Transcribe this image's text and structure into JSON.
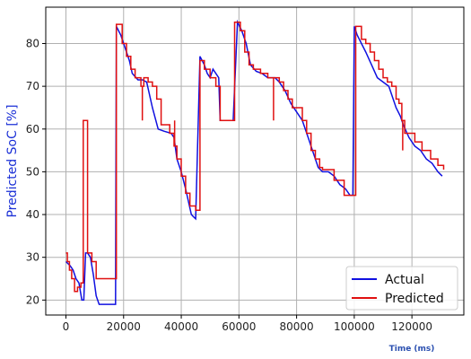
{
  "chart_data": {
    "type": "line",
    "xlabel": "Time (ms)",
    "ylabel": "Predicted SoC [%]",
    "xlim": [
      -7000,
      138000
    ],
    "ylim": [
      16.5,
      88.5
    ],
    "xticks": [
      0,
      20000,
      40000,
      60000,
      80000,
      100000,
      120000
    ],
    "yticks": [
      20,
      30,
      40,
      50,
      60,
      70,
      80
    ],
    "grid": true,
    "legend_position": "lower-right",
    "series": [
      {
        "name": "Actual",
        "color": "#1010e0",
        "step": false,
        "x": [
          0,
          1500,
          2500,
          3500,
          4500,
          5500,
          6200,
          6800,
          7500,
          8500,
          9500,
          10500,
          11500,
          12500,
          17200,
          17500,
          19000,
          21000,
          22000,
          23000,
          25000,
          26500,
          28000,
          30000,
          32000,
          34000,
          36500,
          37500,
          38500,
          40000,
          41500,
          43500,
          44200,
          45000,
          46500,
          48000,
          49000,
          50000,
          51000,
          53000,
          53500,
          58000,
          59500,
          61000,
          62500,
          64000,
          66000,
          68000,
          70000,
          72500,
          74000,
          76000,
          78000,
          80000,
          82000,
          84000,
          86000,
          87500,
          89000,
          91000,
          93000,
          95000,
          97000,
          98500,
          99500,
          100000,
          101000,
          102500,
          104000,
          106000,
          108000,
          110000,
          112000,
          114500,
          116000,
          117000,
          119000,
          121000,
          123000,
          125000,
          127000,
          129000,
          130500
        ],
        "y": [
          29,
          28,
          27,
          25,
          24,
          20,
          20,
          31,
          31,
          30,
          26,
          21,
          19,
          19,
          19,
          84,
          82,
          78,
          76,
          73,
          71.5,
          71.5,
          71,
          65,
          60,
          59.5,
          59,
          58,
          53,
          50,
          46,
          40,
          39.5,
          39,
          77,
          75,
          73,
          72,
          74,
          72,
          62,
          62,
          85,
          83,
          80,
          75,
          73.5,
          73,
          72,
          72,
          71,
          69,
          66,
          64,
          62,
          58,
          54,
          51,
          50,
          50,
          49,
          47,
          46,
          44.5,
          44.5,
          84,
          82,
          80,
          78,
          75,
          72,
          71,
          70,
          65,
          63,
          61,
          58,
          56,
          55,
          53,
          52,
          50,
          49
        ]
      },
      {
        "name": "Predicted",
        "color": "#e01010",
        "step": true,
        "x": [
          0,
          500,
          1200,
          2000,
          3000,
          4000,
          5200,
          6000,
          7500,
          9000,
          10500,
          17500,
          19500,
          21000,
          22500,
          24000,
          26000,
          27000,
          28500,
          30000,
          31500,
          33000,
          36000,
          37500,
          38500,
          40000,
          41500,
          43000,
          45000,
          46500,
          48000,
          50000,
          52000,
          53500,
          58500,
          60500,
          62000,
          63500,
          65000,
          67500,
          70000,
          72000,
          74000,
          75500,
          77000,
          78500,
          80000,
          82000,
          83500,
          85000,
          86500,
          88000,
          89000,
          93000,
          96500,
          100500,
          102500,
          104000,
          105500,
          107000,
          108500,
          110000,
          111500,
          113000,
          114500,
          115500,
          116500,
          117500,
          121000,
          123500,
          126500,
          129000,
          131000
        ],
        "y": [
          31,
          29,
          27,
          25,
          22,
          23,
          24,
          62,
          31,
          29,
          25,
          84.5,
          80,
          77,
          74,
          72,
          70,
          72,
          71,
          70,
          67,
          61,
          59,
          56,
          53,
          49,
          45,
          42,
          41,
          76,
          74,
          72,
          70,
          62,
          85,
          83,
          78,
          75,
          74,
          73,
          72,
          72,
          71,
          69,
          67,
          65,
          65,
          62,
          59,
          55,
          53,
          51,
          50.5,
          48,
          44.5,
          84,
          81,
          80,
          78,
          76,
          74,
          72,
          71,
          70,
          67,
          66,
          62,
          59,
          57,
          55,
          53,
          51.5,
          50.5
        ]
      }
    ],
    "spikes": [
      {
        "series": "Predicted",
        "x": 26500,
        "y_from": 70,
        "y_to": 62
      },
      {
        "series": "Predicted",
        "x": 37700,
        "y_from": 56,
        "y_to": 62
      },
      {
        "series": "Predicted",
        "x": 72000,
        "y_from": 72,
        "y_to": 62
      },
      {
        "series": "Predicted",
        "x": 116800,
        "y_from": 62,
        "y_to": 55
      }
    ]
  }
}
